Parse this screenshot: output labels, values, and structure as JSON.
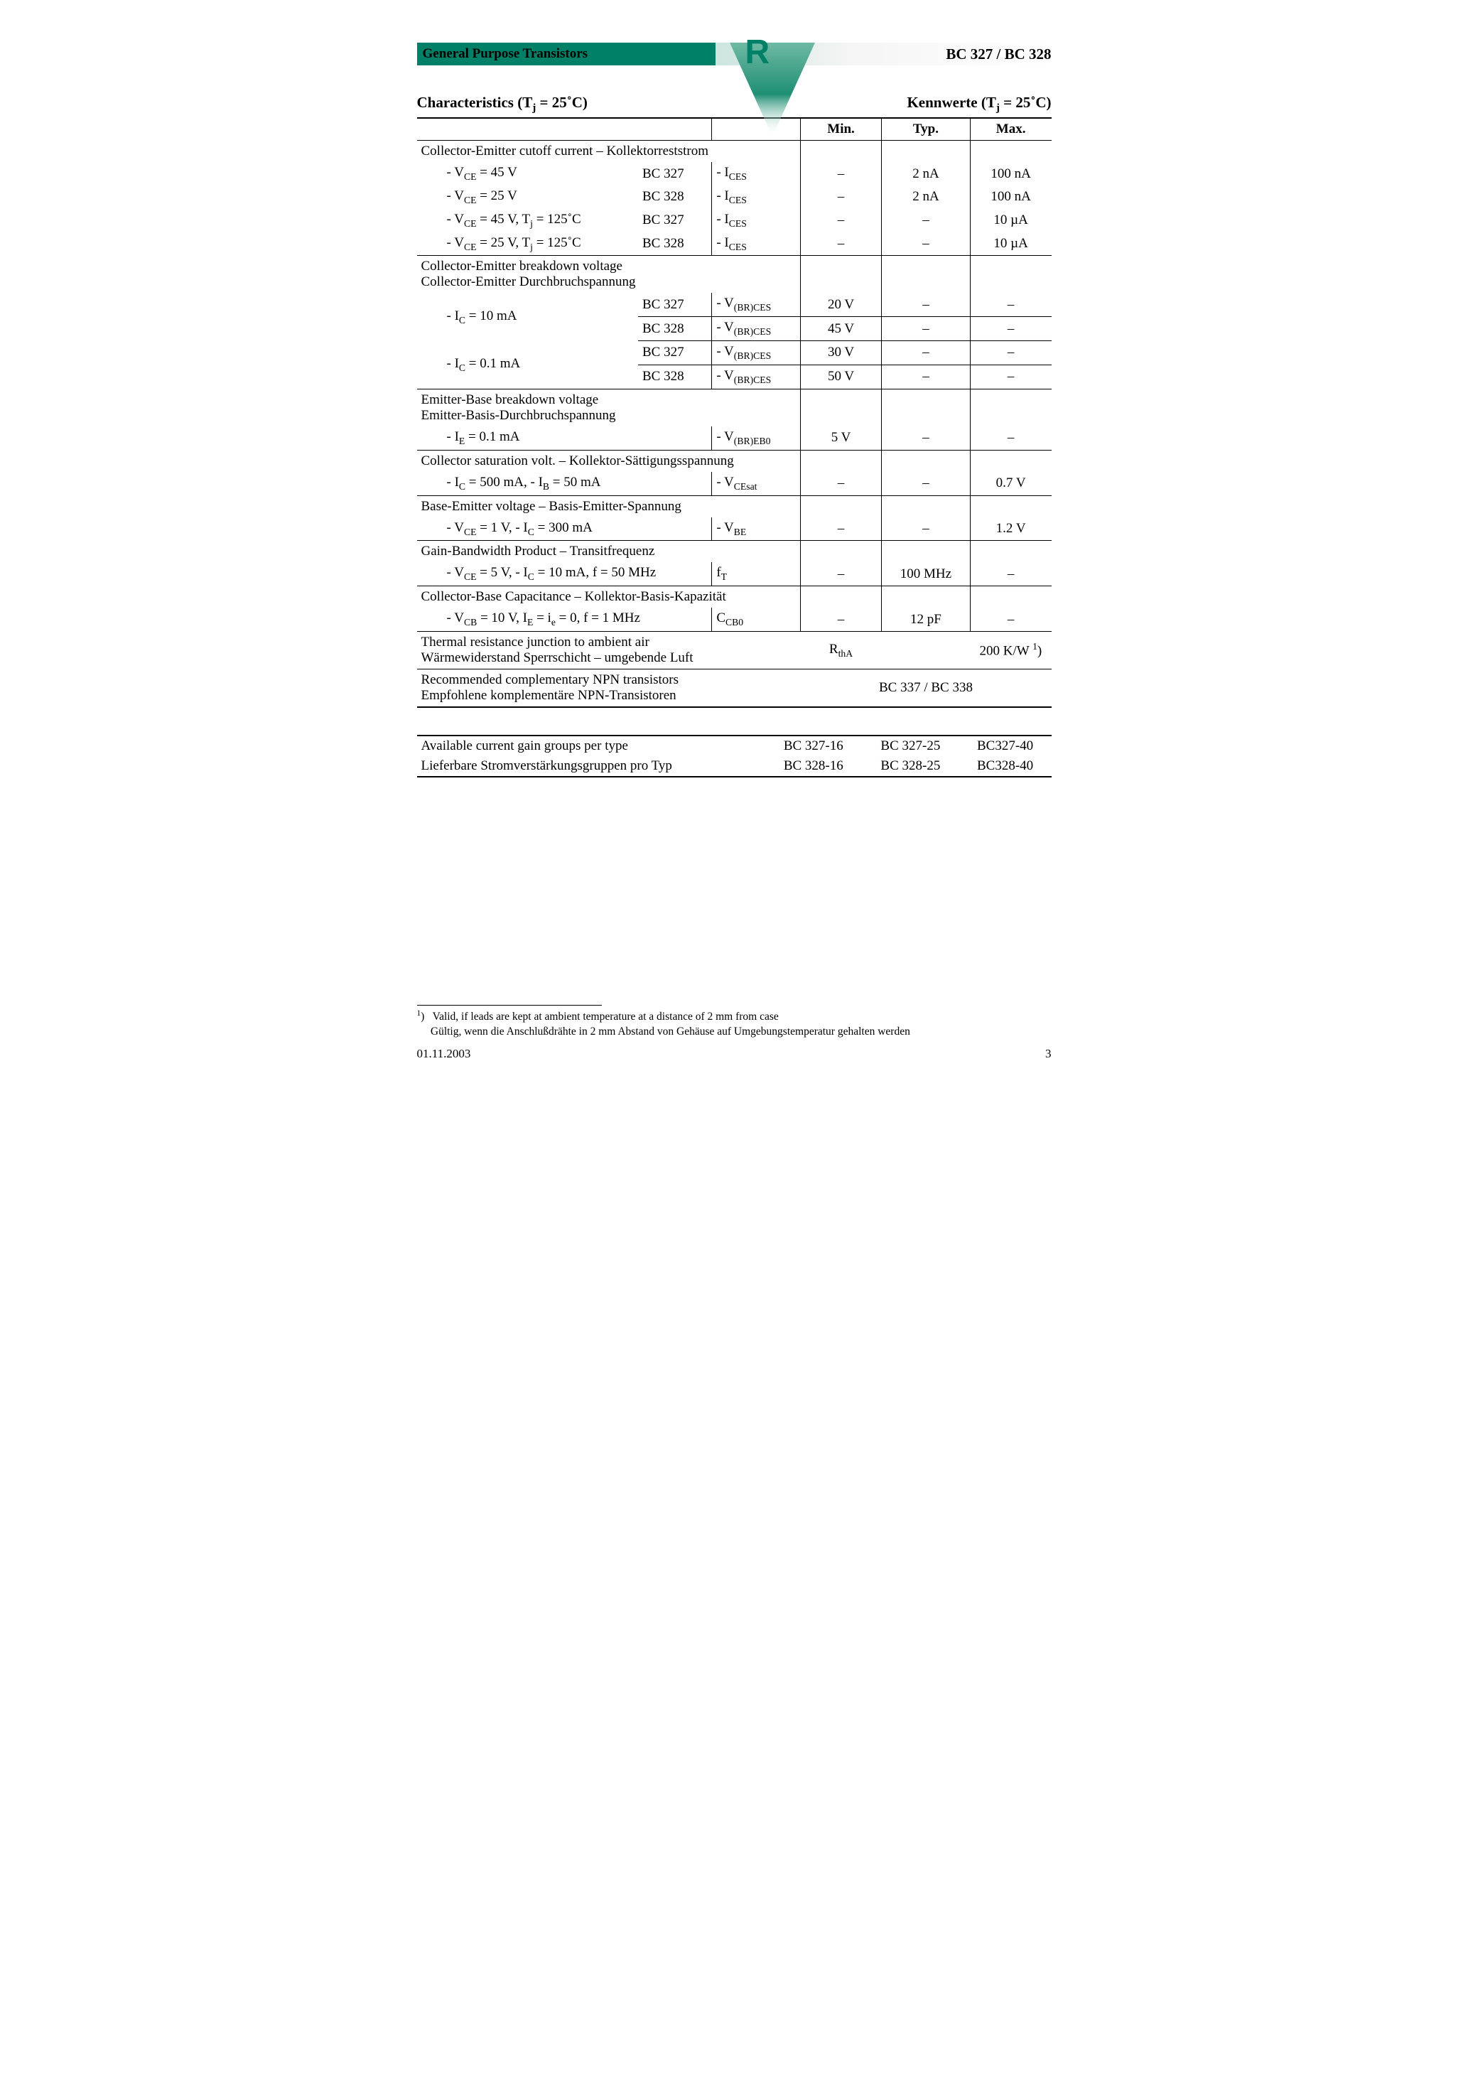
{
  "header": {
    "title_left": "General Purpose Transistors",
    "title_right": "BC 327 / BC 328",
    "logo_letter": "R"
  },
  "section": {
    "left_html": "Characteristics (T<sub>j</sub> = 25˚C)",
    "right_html": "Kennwerte (T<sub>j</sub> = 25˚C)"
  },
  "cols": {
    "min": "Min.",
    "typ": "Typ.",
    "max": "Max."
  },
  "rows": {
    "ce_cutoff_header": "Collector-Emitter cutoff current – Kollektorreststrom",
    "r1": {
      "cond": "- V<sub>CE</sub> = 45 V",
      "dev": "BC 327",
      "sym": "- I<sub>CES</sub>",
      "min": "–",
      "typ": "2 nA",
      "max": "100 nA"
    },
    "r2": {
      "cond": "- V<sub>CE</sub> = 25 V",
      "dev": "BC 328",
      "sym": "- I<sub>CES</sub>",
      "min": "–",
      "typ": "2 nA",
      "max": "100 nA"
    },
    "r3": {
      "cond": "- V<sub>CE</sub> = 45 V, T<sub>j</sub> = 125˚C",
      "dev": "BC 327",
      "sym": "- I<sub>CES</sub>",
      "min": "–",
      "typ": "–",
      "max": "10 µA"
    },
    "r4": {
      "cond": "- V<sub>CE</sub> = 25 V, T<sub>j</sub> = 125˚C",
      "dev": "BC 328",
      "sym": "- I<sub>CES</sub>",
      "min": "–",
      "typ": "–",
      "max": "10 µA"
    },
    "ce_break_header_l1": "Collector-Emitter breakdown voltage",
    "ce_break_header_l2": "Collector-Emitter Durchbruchspannung",
    "ic10_label": "- I<sub>C</sub> = 10 mA",
    "ic01_label": "- I<sub>C</sub> = 0.1 mA",
    "bc327": "BC 327",
    "bc328": "BC 328",
    "vbrces": "- V<sub>(BR)CES</sub>",
    "b1": {
      "min": "20 V",
      "typ": "–",
      "max": "–"
    },
    "b2": {
      "min": "45 V",
      "typ": "–",
      "max": "–"
    },
    "b3": {
      "min": "30 V",
      "typ": "–",
      "max": "–"
    },
    "b4": {
      "min": "50 V",
      "typ": "–",
      "max": "–"
    },
    "eb_break_l1": "Emitter-Base breakdown voltage",
    "eb_break_l2": "Emitter-Basis-Durchbruchspannung",
    "ie01": {
      "cond": "- I<sub>E</sub> = 0.1 mA",
      "sym": "- V<sub>(BR)EB0</sub>",
      "min": "5 V",
      "typ": "–",
      "max": "–"
    },
    "cesat_header": "Collector saturation volt. – Kollektor-Sättigungsspannung",
    "cesat": {
      "cond": "- I<sub>C</sub> = 500 mA, - I<sub>B</sub> = 50 mA",
      "sym": "- V<sub>CEsat</sub>",
      "min": "–",
      "typ": "–",
      "max": "0.7 V"
    },
    "vbe_header": "Base-Emitter voltage – Basis-Emitter-Spannung",
    "vbe": {
      "cond": "- V<sub>CE</sub> = 1 V, - I<sub>C</sub> = 300 mA",
      "sym": "- V<sub>BE</sub>",
      "min": "–",
      "typ": "–",
      "max": "1.2 V"
    },
    "ft_header": "Gain-Bandwidth Product – Transitfrequenz",
    "ft": {
      "cond": "- V<sub>CE</sub> = 5 V, - I<sub>C</sub> = 10 mA, f = 50 MHz",
      "sym": "f<sub>T</sub>",
      "min": "–",
      "typ": "100 MHz",
      "max": "–"
    },
    "ccb_header": "Collector-Base Capacitance – Kollektor-Basis-Kapazität",
    "ccb": {
      "cond": "- V<sub>CB</sub> = 10 V, I<sub>E</sub> = i<sub>e</sub> = 0, f = 1 MHz",
      "sym": "C<sub>CB0</sub>",
      "min": "–",
      "typ": "12 pF",
      "max": "–"
    },
    "rth_l1": "Thermal resistance junction to ambient air",
    "rth_l2": "Wärmewiderstand Sperrschicht – umgebende Luft",
    "rth_sym": "R<sub>thA</sub>",
    "rth_val": "200 K/W <sup>1</sup>)",
    "comp_l1": "Recommended complementary NPN transistors",
    "comp_l2": "Empfohlene komplementäre NPN-Transistoren",
    "comp_val": "BC 337 / BC 338"
  },
  "gain": {
    "label_l1": "Available current gain groups per type",
    "label_l2": "Lieferbare Stromverstärkungsgruppen pro Typ",
    "c1a": "BC 327-16",
    "c2a": "BC 327-25",
    "c3a": "BC327-40",
    "c1b": "BC 328-16",
    "c2b": "BC 328-25",
    "c3b": "BC328-40"
  },
  "footnote": {
    "mark": "1",
    "en": "Valid, if leads are kept at ambient temperature at a distance of 2 mm from case",
    "de": "Gültig, wenn die Anschlußdrähte in 2 mm Abstand von Gehäuse auf Umgebungstemperatur gehalten werden"
  },
  "footer": {
    "date": "01.11.2003",
    "page": "3"
  },
  "colors": {
    "brand_green": "#008066",
    "gradient_start": "#cce5de",
    "gradient_mid": "#f5f5f5",
    "text": "#000000",
    "background": "#ffffff"
  }
}
